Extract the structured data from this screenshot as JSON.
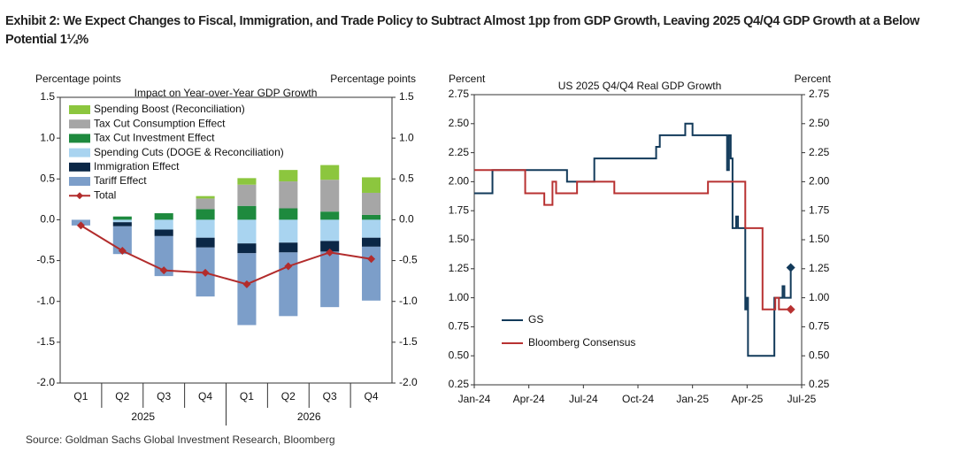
{
  "title": "Exhibit 2: We Expect Changes to Fiscal, Immigration, and Trade Policy to Subtract Almost 1pp from GDP Growth, Leaving 2025 Q4/Q4 GDP Growth at a Below Potential 1¼%",
  "source": "Source: Goldman Sachs Global Investment Research, Bloomberg",
  "chart_data": [
    {
      "type": "bar",
      "stacked": true,
      "subtitle": "Impact on Year-over-Year  GDP Growth",
      "y_label": "Percentage  points",
      "y2_label": "Percentage  points",
      "categories": [
        "Q1",
        "Q2",
        "Q3",
        "Q4",
        "Q1",
        "Q2",
        "Q3",
        "Q4"
      ],
      "category_groups": [
        "2025",
        "2026"
      ],
      "ylim": [
        -2.0,
        1.5
      ],
      "yticks": [
        1.5,
        {
          "value": 1.0,
          "label": "1.0"
        },
        0.5,
        {
          "value": 0.0,
          "label": "0.0"
        },
        -0.5,
        {
          "value": -1.0,
          "label": "-1.0"
        },
        -1.5,
        {
          "value": -2.0,
          "label": "-2.0"
        }
      ],
      "series": [
        {
          "name": "Spending Boost (Reconciliation)",
          "color": "#8cc63e",
          "values": [
            0,
            0,
            0,
            0.03,
            0.08,
            0.14,
            0.18,
            0.19
          ]
        },
        {
          "name": "Tax Cut Consumption  Effect",
          "color": "#a6a6a6",
          "values": [
            0,
            0,
            0,
            0.13,
            0.26,
            0.33,
            0.39,
            0.27
          ]
        },
        {
          "name": "Tax Cut Investment Effect",
          "color": "#1e8a3e",
          "values": [
            0,
            0.04,
            0.08,
            0.13,
            0.17,
            0.14,
            0.1,
            0.06
          ]
        },
        {
          "name": "Spending Cuts (DOGE & Reconciliation)",
          "color": "#a9d4f0",
          "values": [
            0,
            -0.03,
            -0.12,
            -0.22,
            -0.29,
            -0.28,
            -0.26,
            -0.22
          ]
        },
        {
          "name": "Immigration Effect",
          "color": "#0b2746",
          "values": [
            0,
            -0.05,
            -0.08,
            -0.12,
            -0.12,
            -0.12,
            -0.13,
            -0.11
          ]
        },
        {
          "name": "Tariff Effect",
          "color": "#7c9ec9",
          "values": [
            -0.07,
            -0.34,
            -0.49,
            -0.6,
            -0.88,
            -0.78,
            -0.68,
            -0.66
          ]
        },
        {
          "name": "Total",
          "color": "#b22c2c",
          "kind": "line",
          "values": [
            -0.07,
            -0.38,
            -0.62,
            -0.65,
            -0.79,
            -0.57,
            -0.4,
            -0.48
          ]
        }
      ]
    },
    {
      "type": "line",
      "step": true,
      "subtitle": "US 2025  Q4/Q4  Real GDP Growth",
      "y_label": "Percent",
      "y2_label": "Percent",
      "xlim": [
        0,
        18
      ],
      "xticks": [
        {
          "value": 0,
          "label": "Jan-24"
        },
        {
          "value": 3,
          "label": "Apr-24"
        },
        {
          "value": 6,
          "label": "Jul-24"
        },
        {
          "value": 9,
          "label": "Oct-24"
        },
        {
          "value": 12,
          "label": "Jan-25"
        },
        {
          "value": 15,
          "label": "Apr-25"
        },
        {
          "value": 18,
          "label": "Jul-25"
        }
      ],
      "ylim": [
        0.25,
        2.75
      ],
      "yticks": [
        2.75,
        {
          "value": 2.5,
          "label": "2.50"
        },
        2.25,
        {
          "value": 2.0,
          "label": "2.00"
        },
        1.75,
        {
          "value": 1.5,
          "label": "1.50"
        },
        1.25,
        {
          "value": 1.0,
          "label": "1.00"
        },
        0.75,
        {
          "value": 0.5,
          "label": "0.50"
        },
        0.25
      ],
      "series": [
        {
          "name": "GS",
          "color": "#123a5a",
          "end_marker": true,
          "x": [
            0,
            1,
            1,
            5.1,
            5.1,
            6.6,
            6.6,
            10.0,
            10.0,
            10.2,
            10.2,
            11.6,
            11.6,
            12.0,
            12.0,
            13.9,
            13.9,
            14.0,
            14.0,
            14.1,
            14.1,
            14.2,
            14.2,
            14.4,
            14.4,
            14.5,
            14.5,
            14.9,
            14.9,
            14.95,
            14.95,
            15.05,
            15.05,
            16.5,
            16.5,
            16.95,
            16.95,
            17.05,
            17.05,
            17.4,
            17.4
          ],
          "values": [
            1.9,
            1.9,
            2.1,
            2.1,
            2.0,
            2.0,
            2.2,
            2.2,
            2.3,
            2.3,
            2.4,
            2.4,
            2.5,
            2.5,
            2.4,
            2.4,
            2.1,
            2.1,
            2.4,
            2.4,
            2.2,
            2.2,
            1.6,
            1.6,
            1.7,
            1.7,
            1.6,
            1.6,
            0.9,
            0.9,
            1.0,
            1.0,
            0.5,
            0.5,
            1.0,
            1.0,
            1.1,
            1.1,
            1.0,
            1.0,
            1.26
          ]
        },
        {
          "name": "Bloomberg Consensus",
          "color": "#b83232",
          "end_marker": true,
          "x": [
            0,
            2.8,
            2.8,
            3.85,
            3.85,
            4.3,
            4.3,
            4.5,
            4.5,
            5.65,
            5.65,
            7.7,
            7.7,
            12.85,
            12.85,
            14.9,
            14.9,
            15.85,
            15.85,
            16.55,
            16.55,
            16.75,
            16.75,
            17.4
          ],
          "values": [
            2.1,
            2.1,
            1.9,
            1.9,
            1.8,
            1.8,
            2.0,
            2.0,
            1.9,
            1.9,
            2.0,
            2.0,
            1.9,
            1.9,
            2.0,
            2.0,
            1.6,
            1.6,
            0.9,
            0.9,
            1.0,
            1.0,
            0.9,
            0.9
          ]
        }
      ]
    }
  ]
}
